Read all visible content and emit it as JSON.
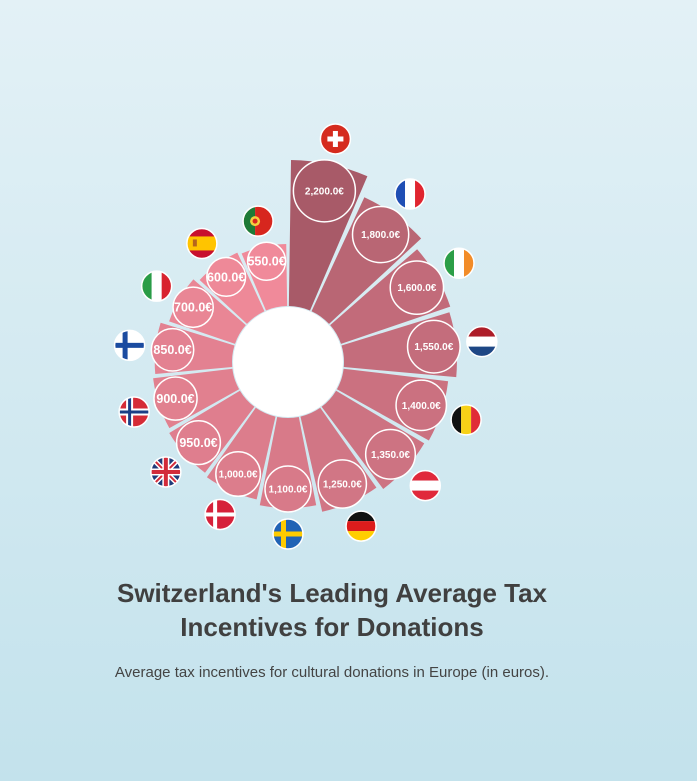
{
  "title_line1": "Switzerland's Leading Average Tax",
  "title_line2": "Incentives for Donations",
  "subtitle": "Average tax incentives for cultural donations in Europe (in euros).",
  "colors": {
    "bar_low": "#f08a9a",
    "bar_high": "#a85a68",
    "bubble_stroke": "#ffffff",
    "center": "#ffffff",
    "label": "#ffffff"
  },
  "chart_data": {
    "type": "bar",
    "layout": "radial",
    "categories": [
      "Switzerland",
      "France",
      "Ireland",
      "Netherlands",
      "Belgium",
      "Austria",
      "Germany",
      "Sweden",
      "Denmark",
      "United Kingdom",
      "Norway",
      "Finland",
      "Italy",
      "Spain",
      "Portugal"
    ],
    "flag_icons": [
      "flag-switzerland-icon",
      "flag-france-icon",
      "flag-ireland-icon",
      "flag-netherlands-icon",
      "flag-belgium-icon",
      "flag-austria-icon",
      "flag-germany-icon",
      "flag-sweden-icon",
      "flag-denmark-icon",
      "flag-united-kingdom-icon",
      "flag-norway-icon",
      "flag-finland-icon",
      "flag-italy-icon",
      "flag-spain-icon",
      "flag-portugal-icon"
    ],
    "values": [
      2200,
      1800,
      1600,
      1550,
      1400,
      1350,
      1250,
      1100,
      1000,
      950,
      900,
      850,
      700,
      600,
      550
    ],
    "labels": [
      "2,200.0€",
      "1,800.0€",
      "1,600.0€",
      "1,550.0€",
      "1,400.0€",
      "1,350.0€",
      "1,250.0€",
      "1,100.0€",
      "1,000.0€",
      "950.0€",
      "900.0€",
      "850.0€",
      "700.0€",
      "600.0€",
      "550.0€"
    ],
    "unit": "€"
  }
}
